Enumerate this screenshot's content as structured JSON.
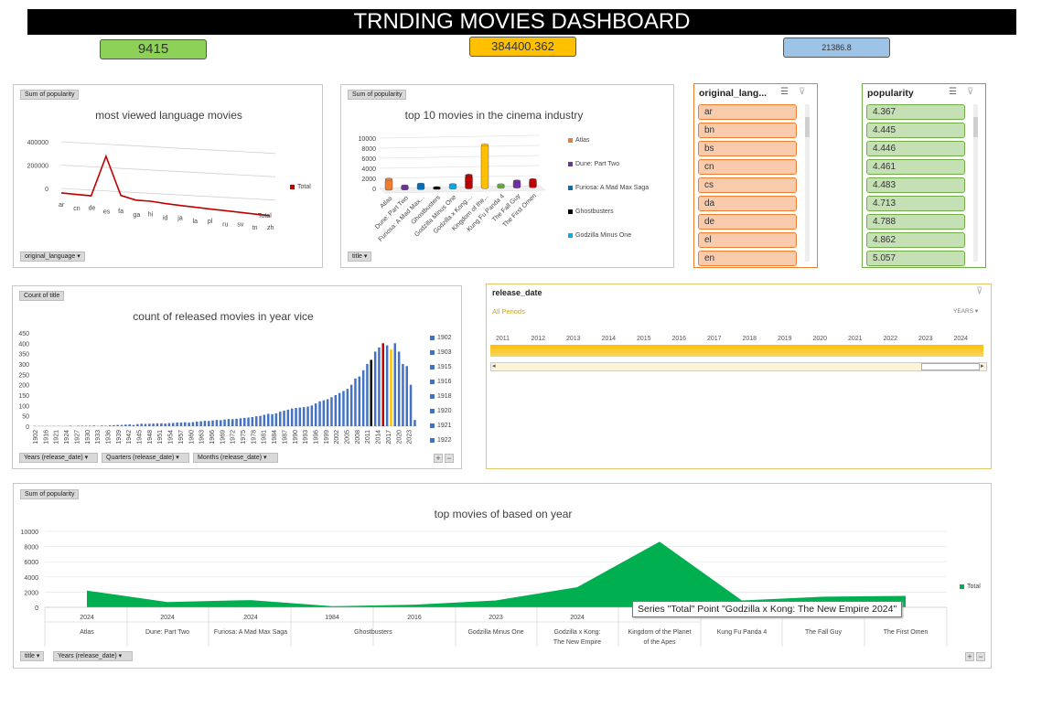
{
  "dashboard": {
    "title": "TRNDING MOVIES DASHBOARD"
  },
  "kpis": [
    {
      "value": "9415",
      "color": "#8ed158"
    },
    {
      "value": "384400.362",
      "color": "#ffc000"
    },
    {
      "value": "21386.8",
      "color": "#9dc3e6"
    }
  ],
  "chart_language": {
    "field_value": "Sum of popularity",
    "field_axis": "original_language",
    "legend": "Total",
    "line_color": "#c00000"
  },
  "chart_top10": {
    "field_value": "Sum of popularity",
    "field_axis": "title"
  },
  "chart_released": {
    "field_value": "Count of title",
    "field_years": "Years (release_date)",
    "field_quarters": "Quarters (release_date)",
    "field_months": "Months (release_date)",
    "legend": [
      "1902",
      "1903",
      "1915",
      "1916",
      "1918",
      "1920",
      "1921",
      "1922"
    ]
  },
  "slicer_language": {
    "title": "original_lang...",
    "items": [
      "ar",
      "bn",
      "bs",
      "cn",
      "cs",
      "da",
      "de",
      "el",
      "en"
    ],
    "bg": "#f8cbad",
    "border": "#ed7d31"
  },
  "slicer_popularity": {
    "title": "popularity",
    "items": [
      "4.367",
      "4.445",
      "4.446",
      "4.461",
      "4.483",
      "4.713",
      "4.788",
      "4.862",
      "5.057"
    ],
    "bg": "#c5e0b4",
    "border": "#70ad47"
  },
  "timeline": {
    "title": "release_date",
    "periods_label": "All Periods",
    "unit": "YEARS",
    "years": [
      "2011",
      "2012",
      "2013",
      "2014",
      "2015",
      "2016",
      "2017",
      "2018",
      "2019",
      "2020",
      "2021",
      "2022",
      "2023",
      "2024"
    ],
    "bar_color": "#ffc000"
  },
  "chart_top_year": {
    "field_value": "Sum of popularity",
    "field_title": "title",
    "field_years": "Years (release_date)",
    "legend": "Total",
    "color": "#00b050",
    "tooltip": "Series \"Total\" Point \"Godzilla x Kong: The New Empire 2024\""
  },
  "chart_data": [
    {
      "type": "line",
      "title": "most viewed language movies",
      "categories": [
        "ar",
        "cn",
        "de",
        "es",
        "fa",
        "ga",
        "hi",
        "id",
        "ja",
        "la",
        "pl",
        "ru",
        "sv",
        "tn",
        "zh"
      ],
      "series": [
        {
          "name": "Total",
          "values": [
            500,
            1500,
            3000,
            310000,
            30000,
            8000,
            12000,
            6000,
            4000,
            3000,
            2000,
            2500,
            1500,
            1000,
            500
          ]
        }
      ],
      "yticks": [
        0,
        200000,
        400000
      ],
      "ylim": [
        0,
        400000
      ],
      "xlabel": "Total"
    },
    {
      "type": "bar",
      "title": "top 10 movies in the cinema industry",
      "categories": [
        "Atlas",
        "Dune: Part Two",
        "Furiosa: A Mad Max...",
        "Ghostbusters",
        "Godzilla Minus One",
        "Godzilla x Kong:...",
        "Kingdom of the...",
        "Kung Fu Panda 4",
        "The Fall Guy",
        "The First Omen"
      ],
      "values": [
        2200,
        800,
        1100,
        350,
        900,
        2700,
        8700,
        700,
        1400,
        1600
      ],
      "colors": [
        "#ed7d31",
        "#7030a0",
        "#0070c0",
        "#000000",
        "#00b0f0",
        "#c00000",
        "#ffc000",
        "#70ad47",
        "#7030a0",
        "#c00000"
      ],
      "legend": [
        "Atlas",
        "Dune: Part Two",
        "Furiosa: A Mad Max Saga",
        "Ghostbusters",
        "Godzilla Minus One"
      ],
      "legend_colors": [
        "#ed7d31",
        "#7030a0",
        "#0070c0",
        "#000000",
        "#00b0f0"
      ],
      "yticks": [
        0,
        2000,
        4000,
        6000,
        8000,
        10000
      ],
      "ylim": [
        0,
        10000
      ]
    },
    {
      "type": "bar",
      "title": "count of released movies in year vice",
      "x_labels": [
        "1902",
        "1916",
        "1921",
        "1924",
        "1927",
        "1930",
        "1933",
        "1936",
        "1939",
        "1942",
        "1945",
        "1948",
        "1951",
        "1954",
        "1957",
        "1960",
        "1963",
        "1966",
        "1969",
        "1972",
        "1975",
        "1978",
        "1981",
        "1984",
        "1987",
        "1990",
        "1993",
        "1996",
        "1999",
        "2002",
        "2005",
        "2008",
        "2011",
        "2014",
        "2017",
        "2020",
        "2023"
      ],
      "values": [
        1,
        1,
        1,
        1,
        1,
        1,
        1,
        1,
        1,
        2,
        1,
        2,
        2,
        2,
        2,
        3,
        1,
        3,
        2,
        4,
        5,
        6,
        6,
        8,
        9,
        6,
        10,
        12,
        11,
        12,
        13,
        14,
        14,
        13,
        15,
        16,
        18,
        18,
        19,
        17,
        20,
        22,
        24,
        26,
        25,
        28,
        30,
        29,
        32,
        35,
        34,
        36,
        38,
        40,
        42,
        44,
        48,
        50,
        55,
        60,
        58,
        62,
        70,
        75,
        80,
        85,
        88,
        90,
        92,
        95,
        100,
        110,
        120,
        125,
        130,
        140,
        150,
        160,
        170,
        180,
        200,
        230,
        240,
        270,
        300,
        320,
        360,
        380,
        400,
        390,
        370,
        400,
        360,
        300,
        290,
        200,
        30
      ],
      "yticks": [
        0,
        50,
        100,
        150,
        200,
        250,
        300,
        350,
        400,
        450
      ],
      "ylim": [
        0,
        450
      ]
    },
    {
      "type": "area",
      "title": "top movies of based on year",
      "categories": [
        "Atlas",
        "Dune: Part Two",
        "Furiosa: A Mad Max Saga",
        "Ghostbusters",
        "",
        "Godzilla Minus One",
        "Godzilla x Kong: The New Empire",
        "Kingdom of the Planet of the Apes",
        "Kung Fu Panda 4",
        "The Fall Guy",
        "The First Omen"
      ],
      "years": [
        "2024",
        "2024",
        "2024",
        "1984",
        "2016",
        "2023",
        "2024",
        "",
        "",
        "",
        ""
      ],
      "series": [
        {
          "name": "Total",
          "values": [
            2200,
            700,
            950,
            150,
            350,
            900,
            2650,
            8650,
            900,
            1400,
            1500
          ]
        }
      ],
      "yticks": [
        0,
        2000,
        4000,
        6000,
        8000,
        10000
      ],
      "ylim": [
        0,
        10000
      ]
    }
  ]
}
